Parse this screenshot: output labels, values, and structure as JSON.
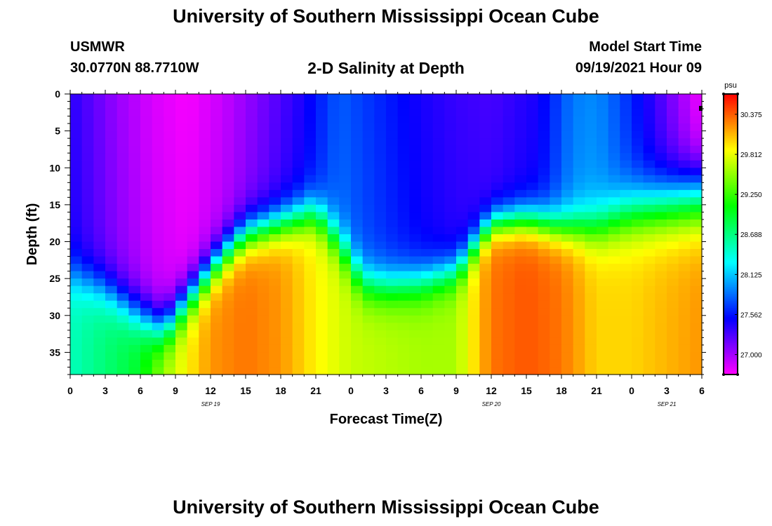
{
  "header": {
    "title": "University of Southern Mississippi Ocean Cube",
    "station": "USMWR",
    "coords": "30.0770N  88.7710W",
    "subtitle": "2-D Salinity at Depth",
    "start_label": "Model Start Time",
    "start_value": "09/19/2021 Hour 09"
  },
  "footer": {
    "title": "University of Southern Mississippi Ocean Cube"
  },
  "chart_data": {
    "type": "heatmap",
    "title": "2-D Salinity at Depth",
    "xlabel": "Forecast Time(Z)",
    "ylabel": "Depth (ft)",
    "xlim": [
      0,
      54
    ],
    "ylim": [
      0,
      38
    ],
    "x_ticks": [
      0,
      3,
      6,
      9,
      12,
      15,
      18,
      21,
      24,
      27,
      30,
      33,
      36,
      39,
      42,
      45,
      48,
      51,
      54
    ],
    "x_tick_labels": [
      "0",
      "3",
      "6",
      "9",
      "12",
      "15",
      "18",
      "21",
      "0",
      "3",
      "6",
      "9",
      "12",
      "15",
      "18",
      "21",
      "0",
      "3",
      "6"
    ],
    "date_labels": [
      {
        "hour": 12,
        "text": "SEP 19"
      },
      {
        "hour": 36,
        "text": "SEP 20"
      },
      {
        "hour": 51,
        "text": "SEP 21"
      }
    ],
    "y_ticks": [
      0,
      5,
      10,
      15,
      20,
      25,
      30,
      35
    ],
    "y_tick_labels": [
      "0",
      "5",
      "10",
      "15",
      "20",
      "25",
      "30",
      "35"
    ],
    "colorbar": {
      "unit": "psu",
      "min": 26.72,
      "max": 30.66,
      "tick_values": [
        27.0,
        27.562,
        28.125,
        28.688,
        29.25,
        29.812,
        30.375
      ],
      "tick_labels": [
        "27.000",
        "27.562",
        "28.125",
        "28.688",
        "29.250",
        "29.812",
        "30.375"
      ]
    },
    "grid": false,
    "cell_hours": 1,
    "cell_depth_ft": 1,
    "salinity_model": {
      "note": "approximate reconstruction of displayed salinity field (psu) as function of forecast hour t and depth z (ft)",
      "halocline_knots": [
        [
          0,
          24.5
        ],
        [
          3,
          26.5
        ],
        [
          6,
          30
        ],
        [
          8,
          32
        ],
        [
          10,
          28
        ],
        [
          13,
          22
        ],
        [
          15,
          19
        ],
        [
          18,
          17.5
        ],
        [
          21,
          16
        ],
        [
          23,
          20
        ],
        [
          25,
          25.5
        ],
        [
          27,
          26
        ],
        [
          30,
          25.5
        ],
        [
          33,
          24
        ],
        [
          36,
          17.5
        ],
        [
          39,
          17
        ],
        [
          42,
          18
        ],
        [
          45,
          18
        ],
        [
          48,
          16
        ],
        [
          51,
          15
        ],
        [
          54,
          14
        ]
      ],
      "thickness_knots": [
        [
          0,
          7
        ],
        [
          6,
          7
        ],
        [
          12,
          6
        ],
        [
          18,
          6
        ],
        [
          24,
          6.5
        ],
        [
          30,
          6.5
        ],
        [
          36,
          5
        ],
        [
          42,
          6
        ],
        [
          48,
          8.5
        ],
        [
          54,
          10
        ]
      ],
      "deep_knots": [
        [
          0,
          28.5
        ],
        [
          4,
          28.8
        ],
        [
          6,
          29.0
        ],
        [
          8,
          29.6
        ],
        [
          12,
          30.2
        ],
        [
          15,
          30.3
        ],
        [
          18,
          30.2
        ],
        [
          21,
          29.9
        ],
        [
          24,
          29.7
        ],
        [
          30,
          29.6
        ],
        [
          33,
          29.6
        ],
        [
          36,
          30.3
        ],
        [
          39,
          30.4
        ],
        [
          42,
          30.3
        ],
        [
          45,
          30.0
        ],
        [
          48,
          30.0
        ],
        [
          51,
          30.1
        ],
        [
          54,
          30.2
        ]
      ],
      "surface_knots": [
        [
          0,
          27.45
        ],
        [
          4,
          27.1
        ],
        [
          7,
          26.9
        ],
        [
          10,
          26.8
        ],
        [
          13,
          26.95
        ],
        [
          17,
          27.25
        ],
        [
          20,
          27.5
        ],
        [
          23,
          27.85
        ],
        [
          26,
          27.7
        ],
        [
          30,
          27.5
        ],
        [
          33,
          27.4
        ],
        [
          36,
          27.35
        ],
        [
          40,
          27.5
        ],
        [
          43,
          27.95
        ],
        [
          45,
          28.0
        ],
        [
          47,
          27.8
        ],
        [
          50,
          27.4
        ],
        [
          52,
          27.1
        ],
        [
          54,
          26.8
        ]
      ]
    }
  }
}
